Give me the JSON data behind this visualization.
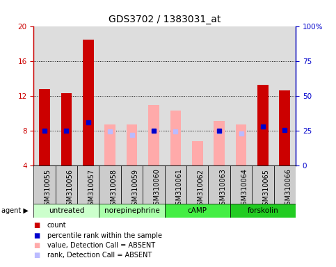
{
  "title": "GDS3702 / 1383031_at",
  "samples": [
    "GSM310055",
    "GSM310056",
    "GSM310057",
    "GSM310058",
    "GSM310059",
    "GSM310060",
    "GSM310061",
    "GSM310062",
    "GSM310063",
    "GSM310064",
    "GSM310065",
    "GSM310066"
  ],
  "count_values": [
    12.8,
    12.3,
    18.5,
    null,
    null,
    null,
    null,
    null,
    null,
    null,
    13.3,
    12.7
  ],
  "percentile_values": [
    8.0,
    8.0,
    9.0,
    null,
    null,
    8.0,
    null,
    null,
    8.0,
    null,
    8.5,
    8.1
  ],
  "absent_value_values": [
    null,
    null,
    null,
    8.7,
    8.7,
    11.0,
    10.3,
    6.8,
    9.1,
    8.7,
    null,
    null
  ],
  "absent_rank_values": [
    null,
    null,
    null,
    7.9,
    7.5,
    8.0,
    7.9,
    null,
    7.9,
    7.7,
    null,
    null
  ],
  "ylim_left": [
    4,
    20
  ],
  "ylim_right": [
    0,
    100
  ],
  "left_ticks": [
    4,
    8,
    12,
    16,
    20
  ],
  "right_ticks": [
    0,
    25,
    50,
    75,
    100
  ],
  "right_tick_labels": [
    "0",
    "25",
    "50",
    "75",
    "100%"
  ],
  "hlines": [
    8,
    12,
    16
  ],
  "color_count": "#cc0000",
  "color_percentile": "#0000cc",
  "color_absent_value": "#ffaaaa",
  "color_absent_rank": "#bbbbff",
  "bar_width": 0.5,
  "plot_bg": "#dddddd",
  "xlabel_fontsize": 7,
  "title_fontsize": 10,
  "group_info": [
    {
      "name": "untreated",
      "start": 0,
      "end": 2,
      "color": "#ccffcc"
    },
    {
      "name": "norepinephrine",
      "start": 3,
      "end": 5,
      "color": "#aaffaa"
    },
    {
      "name": "cAMP",
      "start": 6,
      "end": 8,
      "color": "#44ee44"
    },
    {
      "name": "forskolin",
      "start": 9,
      "end": 11,
      "color": "#22cc22"
    }
  ],
  "legend_items": [
    {
      "color": "#cc0000",
      "label": "count"
    },
    {
      "color": "#0000cc",
      "label": "percentile rank within the sample"
    },
    {
      "color": "#ffaaaa",
      "label": "value, Detection Call = ABSENT"
    },
    {
      "color": "#bbbbff",
      "label": "rank, Detection Call = ABSENT"
    }
  ]
}
